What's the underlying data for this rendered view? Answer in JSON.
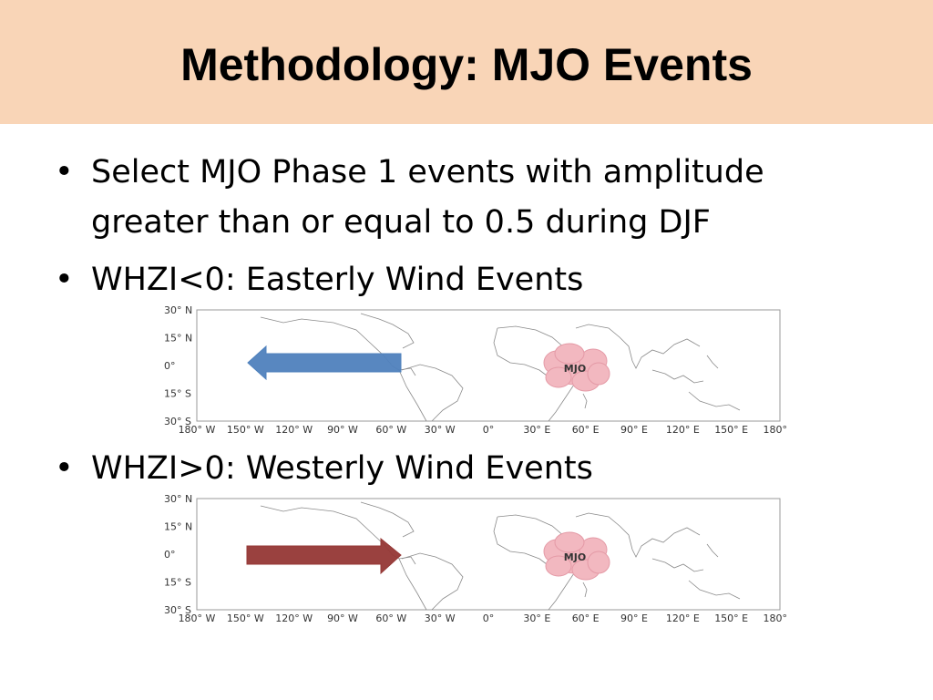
{
  "slide": {
    "title": "Methodology: MJO Events",
    "background_title_bar": "#f9d5b7"
  },
  "bullets": [
    {
      "symbol": "•",
      "lines": [
        "Select MJO Phase 1 events with amplitude",
        "greater than or equal to 0.5 during DJF"
      ]
    },
    {
      "symbol": "•",
      "lines": [
        "WHZI<0: Easterly Wind Events"
      ]
    },
    {
      "symbol": "•",
      "lines": [
        "WHZI>0: Westerly Wind Events"
      ]
    }
  ],
  "maps": [
    {
      "arrow_direction": "west",
      "arrow_color": "#4f81bd",
      "cloud_label": "MJO",
      "cloud_color": "#f2b8c0",
      "lat_labels": [
        "30° N",
        "15° N",
        "0°",
        "15° S",
        "30° S"
      ],
      "lon_labels": [
        "180° W",
        "150° W",
        "120° W",
        "90° W",
        "60° W",
        "30° W",
        "0°",
        "30° E",
        "60° E",
        "90° E",
        "120° E",
        "150° E",
        "180° E"
      ]
    },
    {
      "arrow_direction": "east",
      "arrow_color": "#953735",
      "cloud_label": "MJO",
      "cloud_color": "#f2b8c0",
      "lat_labels": [
        "30° N",
        "15° N",
        "0°",
        "15° S",
        "30° S"
      ],
      "lon_labels": [
        "180° W",
        "150° W",
        "120° W",
        "90° W",
        "60° W",
        "30° W",
        "0°",
        "30° E",
        "60° E",
        "90° E",
        "120° E",
        "150° E",
        "180° E"
      ]
    }
  ]
}
